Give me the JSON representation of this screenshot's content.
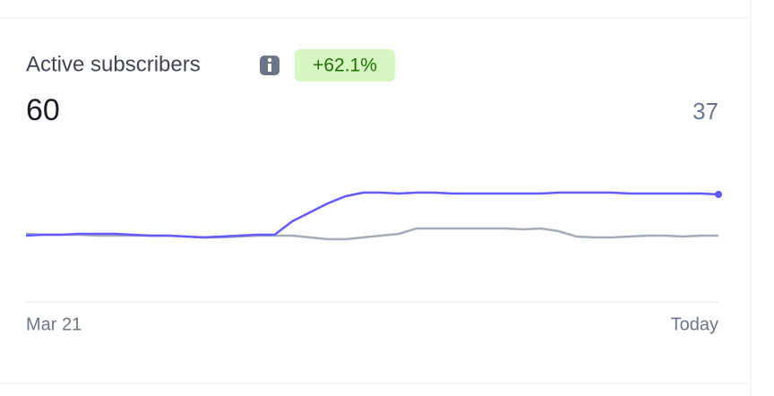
{
  "card": {
    "title": "Active subscribers",
    "badge": "+62.1%",
    "value": "60",
    "comparison_value": "37"
  },
  "chart_data": {
    "type": "line",
    "categories": [
      "Mar 21",
      null,
      null,
      null,
      null,
      null,
      null,
      null,
      null,
      null,
      null,
      null,
      null,
      null,
      null,
      null,
      null,
      null,
      null,
      null,
      null,
      null,
      null,
      null,
      null,
      null,
      null,
      null,
      null,
      null,
      null,
      null,
      null,
      null,
      null,
      null,
      null,
      null,
      null,
      "Today"
    ],
    "series": [
      {
        "color": "#635bff",
        "values": [
          37,
          37.5,
          37.5,
          38,
          38,
          38,
          37.5,
          37,
          37,
          36.5,
          36,
          36.5,
          37,
          37.5,
          37.5,
          45,
          50,
          55,
          59,
          61,
          61,
          60.5,
          61,
          61,
          60.5,
          60.5,
          60.5,
          60.5,
          60.5,
          60.5,
          61,
          61,
          61,
          61,
          60.5,
          60.5,
          60.5,
          60.5,
          60.5,
          60
        ]
      },
      {
        "color": "#a3acb9",
        "values": [
          38,
          37.5,
          37.5,
          37.5,
          37,
          37,
          37,
          37,
          37,
          36.5,
          36,
          36,
          36.5,
          37,
          37,
          37,
          36,
          35,
          35,
          36,
          37,
          38,
          41,
          41,
          41,
          41,
          41,
          41,
          40.5,
          41,
          39.5,
          36.5,
          36,
          36,
          36.5,
          37,
          37,
          36.5,
          37,
          37
        ]
      }
    ],
    "ylim": [
      0,
      90
    ]
  }
}
